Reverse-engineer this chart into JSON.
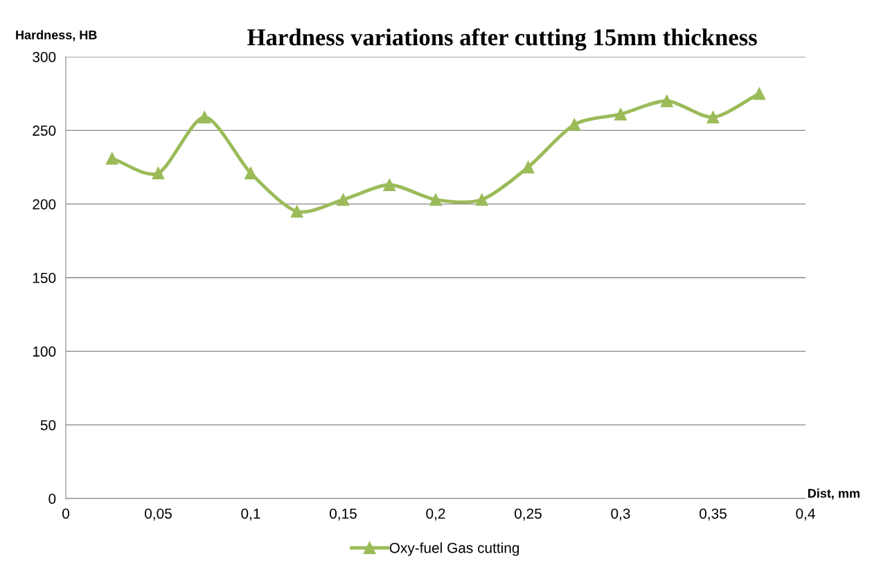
{
  "chart_data": {
    "type": "line",
    "title": "Hardness variations after cutting 15mm thickness",
    "xlabel": "Dist, mm",
    "ylabel": "Hardness, HB",
    "x": [
      0.025,
      0.05,
      0.075,
      0.1,
      0.125,
      0.15,
      0.175,
      0.2,
      0.225,
      0.25,
      0.275,
      0.3,
      0.325,
      0.35,
      0.375
    ],
    "series": [
      {
        "name": "Oxy-fuel Gas cutting",
        "color": "#9bbb59",
        "values": [
          231,
          221,
          259,
          221,
          195,
          203,
          213,
          203,
          203,
          225,
          254,
          261,
          270,
          259,
          275
        ]
      }
    ],
    "xlim": [
      0,
      0.4
    ],
    "ylim": [
      0,
      300
    ],
    "xticks": [
      0,
      {
        "value": 0.05,
        "label": "0,05"
      },
      {
        "value": 0.1,
        "label": "0,1"
      },
      {
        "value": 0.15,
        "label": "0,15"
      },
      {
        "value": 0.2,
        "label": "0,2"
      },
      {
        "value": 0.25,
        "label": "0,25"
      },
      {
        "value": 0.3,
        "label": "0,3"
      },
      {
        "value": 0.35,
        "label": "0,35"
      },
      {
        "value": 0.4,
        "label": "0,4"
      }
    ],
    "yticks": [
      0,
      50,
      100,
      150,
      200,
      250,
      300
    ],
    "grid": "y",
    "legend": "bottom",
    "marker": "triangle",
    "line_style": "solid"
  }
}
